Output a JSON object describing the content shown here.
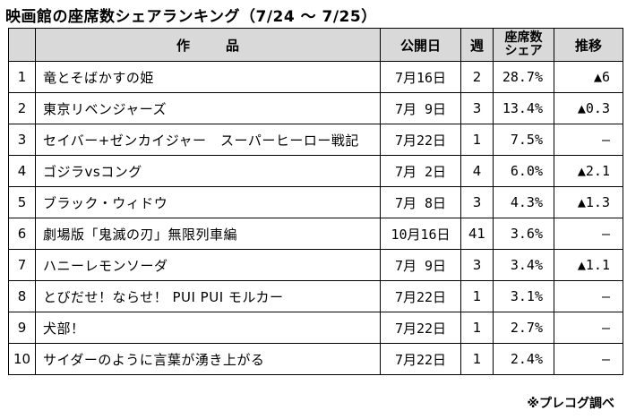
{
  "title": "映画館の座席数シェアランキング（7/24 ～ 7/25）",
  "headers": {
    "rank": "",
    "title_a": "作",
    "title_b": "品",
    "release": "公開日",
    "week": "週",
    "share_line1": "座席数",
    "share_line2": "シェア",
    "trend": "推移"
  },
  "rows": [
    {
      "rank": "1",
      "title": "竜とそばかすの姫",
      "release": "7月16日",
      "week": "2",
      "share": "28.7%",
      "trend": "▲6"
    },
    {
      "rank": "2",
      "title": "東京リベンジャーズ",
      "release": "7月 9日",
      "week": "3",
      "share": "13.4%",
      "trend": "▲0.3"
    },
    {
      "rank": "3",
      "title": "セイバー+ゼンカイジャー　スーパーヒーロー戦記",
      "release": "7月22日",
      "week": "1",
      "share": "7.5%",
      "trend": "—"
    },
    {
      "rank": "4",
      "title": "ゴジラvsコング",
      "release": "7月 2日",
      "week": "4",
      "share": "6.0%",
      "trend": "▲2.1"
    },
    {
      "rank": "5",
      "title": "ブラック・ウィドウ",
      "release": "7月 8日",
      "week": "3",
      "share": "4.3%",
      "trend": "▲1.3"
    },
    {
      "rank": "6",
      "title": "劇場版「鬼滅の刃」無限列車編",
      "release": "10月16日",
      "week": "41",
      "share": "3.6%",
      "trend": "—"
    },
    {
      "rank": "7",
      "title": "ハニーレモンソーダ",
      "release": "7月 9日",
      "week": "3",
      "share": "3.4%",
      "trend": "▲1.1"
    },
    {
      "rank": "8",
      "title": "とびだせ！ならせ！ PUI PUI モルカー",
      "release": "7月22日",
      "week": "1",
      "share": "3.1%",
      "trend": "—"
    },
    {
      "rank": "9",
      "title": "犬部！",
      "release": "7月22日",
      "week": "1",
      "share": "2.7%",
      "trend": "—"
    },
    {
      "rank": "10",
      "title": "サイダーのように言葉が湧き上がる",
      "release": "7月22日",
      "week": "1",
      "share": "2.4%",
      "trend": "—"
    }
  ],
  "note": "※プレコグ調べ",
  "colors": {
    "header_bg": "#d9d9d9",
    "border": "#000000"
  }
}
